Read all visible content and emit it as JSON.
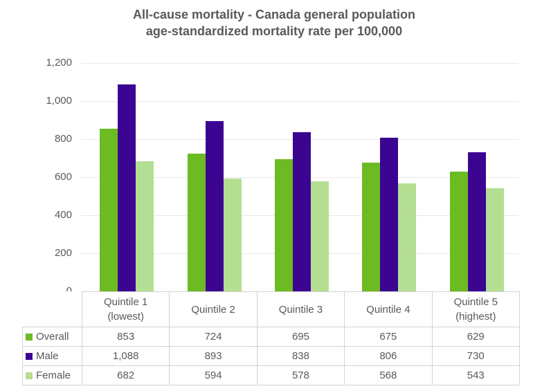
{
  "title": {
    "line1": "All-cause mortality - Canada general population",
    "line2": "age-standardized mortality rate per 100,000"
  },
  "colors": {
    "overall": "#6CBB23",
    "male": "#3C0591",
    "female": "#B4DE92",
    "text": "#595959",
    "gridline": "#E7E7E7",
    "table_border": "#D2D2D2"
  },
  "chart_data": {
    "type": "bar",
    "title": "All-cause mortality - Canada general population age-standardized mortality rate per 100,000",
    "categories": [
      "Quintile 1\n(lowest)",
      "Quintile 2",
      "Quintile 3",
      "Quintile 4",
      "Quintile 5\n(highest)"
    ],
    "series": [
      {
        "name": "Overall",
        "color": "#6CBB23",
        "values": [
          853,
          724,
          695,
          675,
          629
        ]
      },
      {
        "name": "Male",
        "color": "#3C0591",
        "values": [
          1088,
          893,
          838,
          806,
          730
        ]
      },
      {
        "name": "Female",
        "color": "#B4DE92",
        "values": [
          682,
          594,
          578,
          568,
          543
        ]
      }
    ],
    "xlabel": "",
    "ylabel": "",
    "ylim": [
      0,
      1200
    ],
    "y_ticks": [
      0,
      200,
      400,
      600,
      800,
      1000,
      1200
    ],
    "grid": true,
    "legend_position": "data-table-left",
    "data_table": true
  }
}
